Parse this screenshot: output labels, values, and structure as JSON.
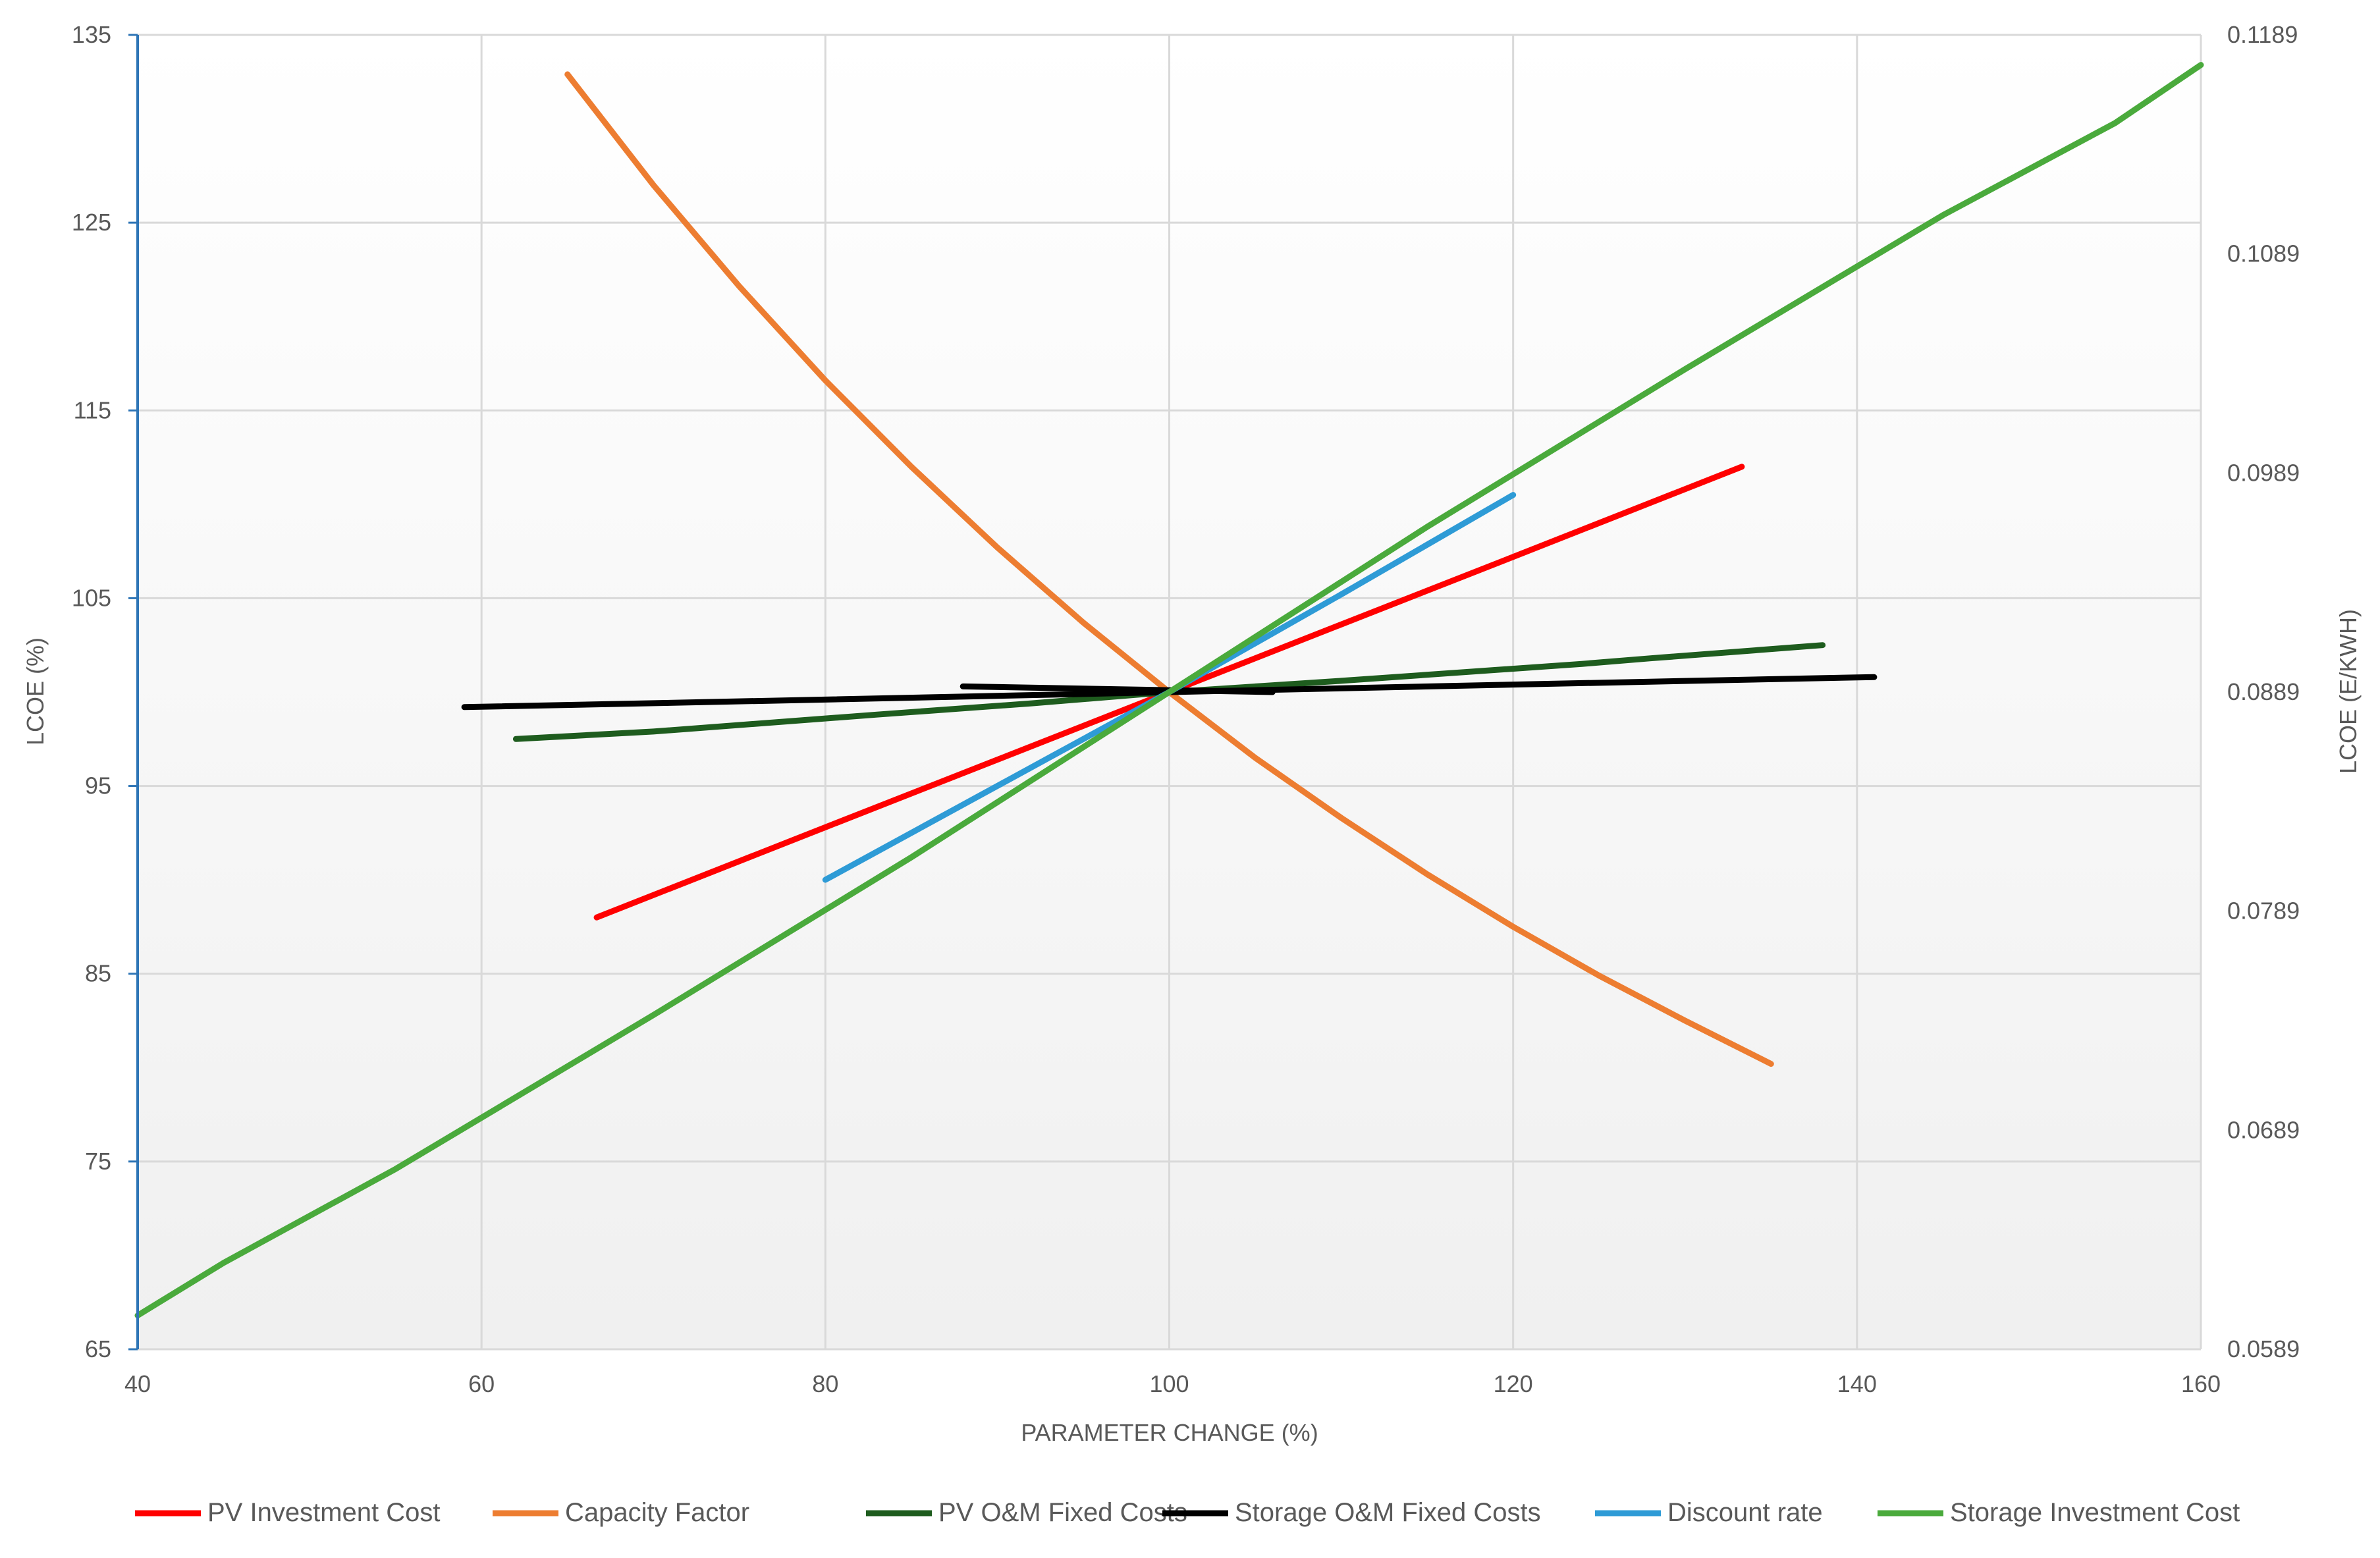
{
  "chart_data": {
    "type": "line",
    "xlabel": "PARAMETER CHANGE (%)",
    "ylabel": "LCOE (%)",
    "y2label": "LCOE (E/KWH)",
    "xlim": [
      40,
      160
    ],
    "ylim": [
      65,
      135
    ],
    "x_ticks": [
      "40",
      "60",
      "80",
      "100",
      "120",
      "140",
      "160"
    ],
    "y_ticks": [
      "65",
      "75",
      "85",
      "95",
      "105",
      "115",
      "125",
      "135"
    ],
    "y2lim": [
      0.0589,
      0.1189
    ],
    "y2_ticks": [
      "0.0589",
      "0.0689",
      "0.0789",
      "0.0889",
      "0.0989",
      "0.1089",
      "0.1189"
    ],
    "grid": true,
    "legend_position": "bottom",
    "series": [
      {
        "name": "PV Investment Cost",
        "color": "#ff0000",
        "x": [
          66.7,
          80,
          90,
          100,
          110,
          120,
          133.3
        ],
        "y": [
          88.0,
          92.8,
          96.4,
          100.0,
          103.6,
          107.2,
          112.0
        ]
      },
      {
        "name": "Capacity Factor",
        "color": "#ed7d31",
        "x": [
          65,
          70,
          75,
          80,
          85,
          90,
          95,
          100,
          105,
          110,
          115,
          120,
          125,
          130,
          135
        ],
        "y": [
          132.9,
          127.0,
          121.6,
          116.6,
          112.0,
          107.7,
          103.7,
          100.0,
          96.5,
          93.3,
          90.3,
          87.5,
          84.9,
          82.5,
          80.2
        ]
      },
      {
        "name": "PV O&M Fixed Costs",
        "color": "#1e5c1e",
        "x": [
          62,
          70,
          83,
          92,
          100,
          110,
          124,
          128,
          138
        ],
        "y": [
          97.5,
          97.9,
          98.8,
          99.4,
          100.0,
          100.6,
          101.5,
          101.8,
          102.5
        ]
      },
      {
        "name": "Storage O&M Fixed Costs",
        "color": "#000000",
        "x": [
          59,
          80,
          100,
          120,
          141
        ],
        "y": [
          99.2,
          99.6,
          100.0,
          100.4,
          100.8
        ]
      },
      {
        "name": "Storage O&M Fixed Costs",
        "color": "#000000",
        "x": [
          88,
          100,
          106
        ],
        "y": [
          100.3,
          100.1,
          100.0
        ]
      },
      {
        "name": "Discount rate",
        "color": "#2e9bd6",
        "x": [
          80,
          90,
          100,
          110,
          120
        ],
        "y": [
          90.0,
          95.0,
          100.0,
          105.2,
          110.5
        ]
      },
      {
        "name": "Storage Investment Cost",
        "color": "#4aaa3c",
        "x": [
          40,
          45,
          55,
          70,
          85,
          100,
          115,
          130,
          145,
          155,
          160
        ],
        "y": [
          66.8,
          69.6,
          74.6,
          82.8,
          91.2,
          100.0,
          108.8,
          117.2,
          125.4,
          130.3,
          133.4
        ]
      }
    ],
    "legend": [
      {
        "name": "PV Investment Cost",
        "color": "#ff0000"
      },
      {
        "name": "Capacity Factor",
        "color": "#ed7d31"
      },
      {
        "name": "PV O&M Fixed Costs",
        "color": "#1e5c1e"
      },
      {
        "name": "Storage O&M Fixed Costs",
        "color": "#000000"
      },
      {
        "name": "Discount rate",
        "color": "#2e9bd6"
      },
      {
        "name": "Storage Investment Cost",
        "color": "#4aaa3c"
      }
    ],
    "colors": {
      "grid": "#d9d9d9",
      "left_axis": "#2e75b6",
      "plot_gradient_top": "#ffffff",
      "plot_gradient_bottom": "#f0f0f0"
    }
  }
}
